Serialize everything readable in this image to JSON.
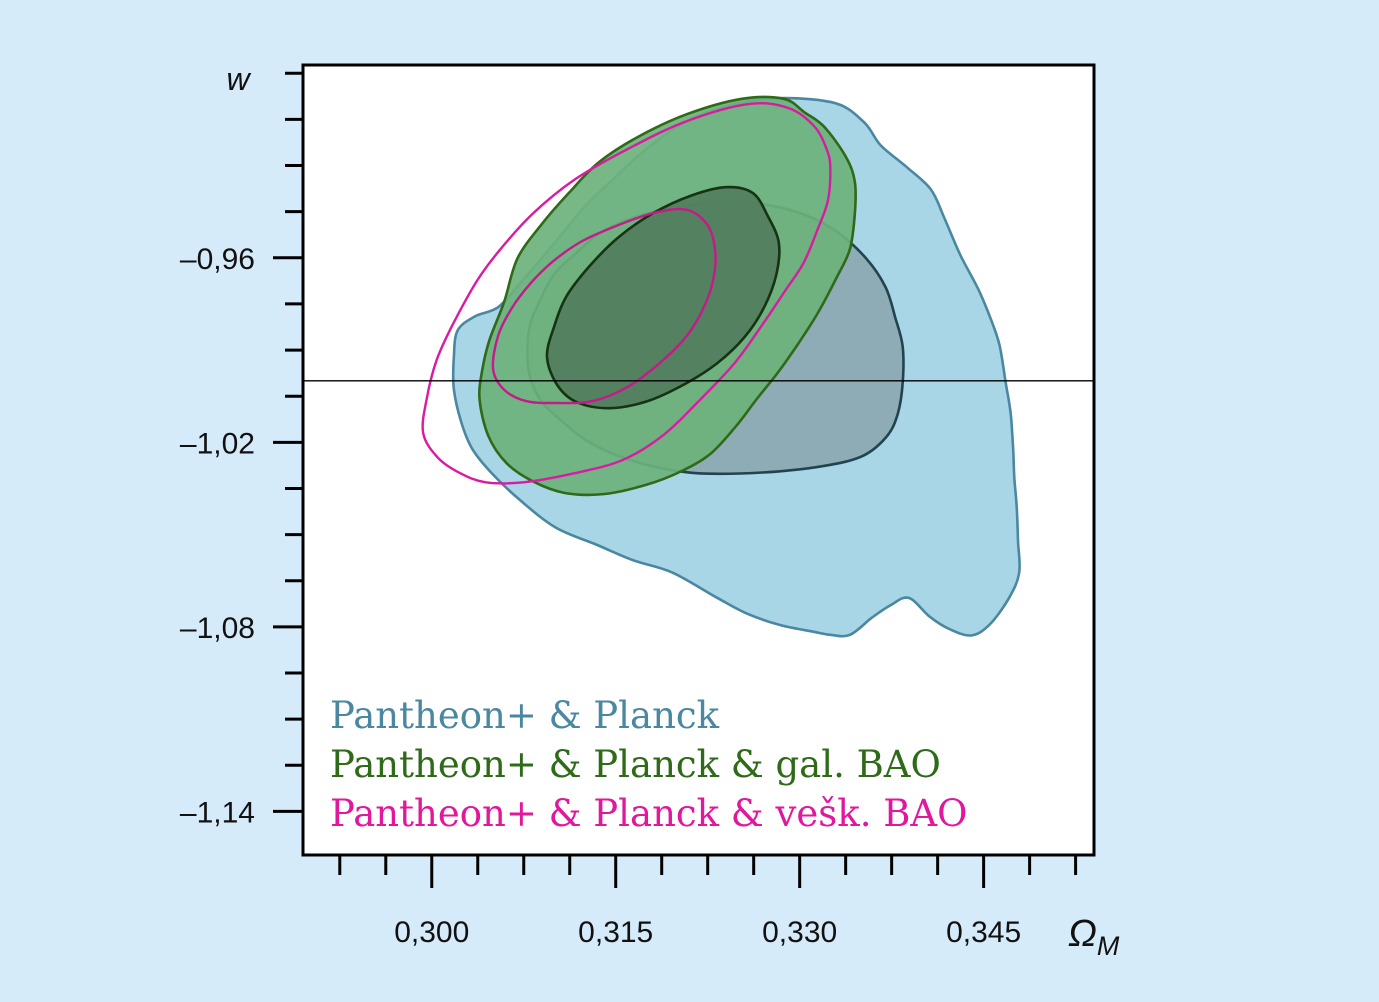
{
  "chart_data": {
    "type": "contour",
    "xlabel": "ΩM",
    "xlabel_main": "Ω",
    "xlabel_sub": "M",
    "ylabel": "w",
    "xlim": [
      0.2895,
      0.354
    ],
    "ylim": [
      -1.1542,
      -0.8973
    ],
    "x_ticks": [
      {
        "value": 0.3,
        "label": "0,300"
      },
      {
        "value": 0.315,
        "label": "0,315"
      },
      {
        "value": 0.33,
        "label": "0,330"
      },
      {
        "value": 0.345,
        "label": "0,345"
      }
    ],
    "y_ticks": [
      {
        "value": -0.96,
        "label": "–0,96"
      },
      {
        "value": -1.02,
        "label": "–1,02"
      },
      {
        "value": -1.08,
        "label": "–1,08"
      },
      {
        "value": -1.14,
        "label": "–1,14"
      }
    ],
    "x_minor_step": 0.00375,
    "y_minor_step": 0.015,
    "reference_line": {
      "w": -1.0
    },
    "grid": false,
    "legend_position": "bottom-left",
    "series": [
      {
        "name": "Pantheon+ & Planck",
        "color": "#4a87a0",
        "fill_outer": "#a2d3e5",
        "fill_inner": "#86a2a9",
        "line_outer": "#4a87a0",
        "line_inner": "#21444e",
        "style": "filled",
        "contours": [
          {
            "level": "2sigma",
            "points": [
              [
                0.3018,
                -0.9926
              ],
              [
                0.3021,
                -0.9837
              ],
              [
                0.3035,
                -0.9791
              ],
              [
                0.3054,
                -0.9761
              ],
              [
                0.3071,
                -0.9688
              ],
              [
                0.3099,
                -0.9557
              ],
              [
                0.3124,
                -0.9437
              ],
              [
                0.3148,
                -0.9344
              ],
              [
                0.3178,
                -0.9237
              ],
              [
                0.3216,
                -0.914
              ],
              [
                0.327,
                -0.9084
              ],
              [
                0.3326,
                -0.9094
              ],
              [
                0.3352,
                -0.9157
              ],
              [
                0.3366,
                -0.9234
              ],
              [
                0.3387,
                -0.9304
              ],
              [
                0.3407,
                -0.9378
              ],
              [
                0.3418,
                -0.9471
              ],
              [
                0.3431,
                -0.9591
              ],
              [
                0.3446,
                -0.9705
              ],
              [
                0.3456,
                -0.9801
              ],
              [
                0.3463,
                -0.9885
              ],
              [
                0.3468,
                -1.0006
              ],
              [
                0.3472,
                -1.0104
              ],
              [
                0.3474,
                -1.0217
              ],
              [
                0.3475,
                -1.0314
              ],
              [
                0.3477,
                -1.041
              ],
              [
                0.3478,
                -1.052
              ],
              [
                0.3479,
                -1.0623
              ],
              [
                0.3471,
                -1.0704
              ],
              [
                0.3455,
                -1.0792
              ],
              [
                0.344,
                -1.0828
              ],
              [
                0.3422,
                -1.0807
              ],
              [
                0.3406,
                -1.0767
              ],
              [
                0.3389,
                -1.0706
              ],
              [
                0.3374,
                -1.073
              ],
              [
                0.3359,
                -1.077
              ],
              [
                0.3341,
                -1.0826
              ],
              [
                0.3325,
                -1.0826
              ],
              [
                0.3311,
                -1.0816
              ],
              [
                0.3284,
                -1.0794
              ],
              [
                0.3257,
                -1.0757
              ],
              [
                0.3232,
                -1.0704
              ],
              [
                0.3196,
                -1.0623
              ],
              [
                0.3164,
                -1.0583
              ],
              [
                0.3135,
                -1.0534
              ],
              [
                0.3101,
                -1.0477
              ],
              [
                0.3072,
                -1.0388
              ],
              [
                0.3049,
                -1.0301
              ],
              [
                0.3033,
                -1.0221
              ],
              [
                0.3024,
                -1.0134
              ],
              [
                0.3018,
                -1.0026
              ]
            ]
          },
          {
            "level": "1sigma",
            "points": [
              [
                0.3078,
                -0.9922
              ],
              [
                0.308,
                -0.9821
              ],
              [
                0.3088,
                -0.9741
              ],
              [
                0.31,
                -0.9652
              ],
              [
                0.3118,
                -0.9584
              ],
              [
                0.3138,
                -0.9517
              ],
              [
                0.3164,
                -0.947
              ],
              [
                0.3197,
                -0.9437
              ],
              [
                0.3234,
                -0.942
              ],
              [
                0.3272,
                -0.9427
              ],
              [
                0.3304,
                -0.946
              ],
              [
                0.333,
                -0.9514
              ],
              [
                0.3354,
                -0.9601
              ],
              [
                0.337,
                -0.9695
              ],
              [
                0.3378,
                -0.9795
              ],
              [
                0.3384,
                -0.9889
              ],
              [
                0.3384,
                -1.0006
              ],
              [
                0.338,
                -1.0107
              ],
              [
                0.3371,
                -1.0181
              ],
              [
                0.3351,
                -1.0245
              ],
              [
                0.3318,
                -1.0278
              ],
              [
                0.327,
                -1.0298
              ],
              [
                0.3219,
                -1.0301
              ],
              [
                0.3183,
                -1.0281
              ],
              [
                0.315,
                -1.0241
              ],
              [
                0.3125,
                -1.0191
              ],
              [
                0.3104,
                -1.0124
              ],
              [
                0.309,
                -1.007
              ],
              [
                0.3081,
                -0.9999
              ]
            ]
          }
        ]
      },
      {
        "name": "Pantheon+ & Planck & gal. BAO",
        "color": "#2e6a18",
        "fill_outer": "#6cb27c",
        "fill_inner": "#4e775a",
        "line_outer": "#2e6a18",
        "line_inner": "#163312",
        "style": "filled",
        "contours": [
          {
            "level": "2sigma",
            "points": [
              [
                0.3047,
                -0.9868
              ],
              [
                0.3059,
                -0.9744
              ],
              [
                0.307,
                -0.9601
              ],
              [
                0.3091,
                -0.9484
              ],
              [
                0.3113,
                -0.9384
              ],
              [
                0.3136,
                -0.929
              ],
              [
                0.3168,
                -0.9207
              ],
              [
                0.3208,
                -0.9133
              ],
              [
                0.3253,
                -0.9083
              ],
              [
                0.3287,
                -0.9083
              ],
              [
                0.3304,
                -0.9127
              ],
              [
                0.332,
                -0.9174
              ],
              [
                0.3338,
                -0.9274
              ],
              [
                0.3345,
                -0.9354
              ],
              [
                0.3345,
                -0.9454
              ],
              [
                0.3341,
                -0.9571
              ],
              [
                0.333,
                -0.9665
              ],
              [
                0.3315,
                -0.9778
              ],
              [
                0.33,
                -0.9872
              ],
              [
                0.3283,
                -0.9969
              ],
              [
                0.3265,
                -1.0059
              ],
              [
                0.3248,
                -1.0148
              ],
              [
                0.3227,
                -1.0238
              ],
              [
                0.3203,
                -1.0295
              ],
              [
                0.3175,
                -1.0338
              ],
              [
                0.3141,
                -1.0368
              ],
              [
                0.3109,
                -1.0365
              ],
              [
                0.3083,
                -1.0328
              ],
              [
                0.3061,
                -1.0268
              ],
              [
                0.3046,
                -1.0178
              ],
              [
                0.3039,
                -1.0061
              ],
              [
                0.3041,
                -0.9969
              ]
            ]
          },
          {
            "level": "1sigma",
            "points": [
              [
                0.3094,
                -0.9921
              ],
              [
                0.31,
                -0.9821
              ],
              [
                0.311,
                -0.9724
              ],
              [
                0.3128,
                -0.963
              ],
              [
                0.3152,
                -0.9534
              ],
              [
                0.318,
                -0.9456
              ],
              [
                0.3212,
                -0.9397
              ],
              [
                0.3241,
                -0.937
              ],
              [
                0.3262,
                -0.939
              ],
              [
                0.3274,
                -0.9464
              ],
              [
                0.3283,
                -0.9551
              ],
              [
                0.3281,
                -0.9654
              ],
              [
                0.3271,
                -0.9761
              ],
              [
                0.3255,
                -0.9858
              ],
              [
                0.3233,
                -0.9942
              ],
              [
                0.3207,
                -1.0009
              ],
              [
                0.3176,
                -1.0066
              ],
              [
                0.3145,
                -1.0089
              ],
              [
                0.3118,
                -1.0069
              ],
              [
                0.3102,
                -1.0012
              ]
            ]
          }
        ]
      },
      {
        "name": "Pantheon+ & Planck & vešk. BAO",
        "color": "#e0189e",
        "fill_outer": "none",
        "fill_inner": "none",
        "line_outer": "#d91ba3",
        "line_inner": "#c41a8a",
        "style": "outline",
        "contours": [
          {
            "level": "2sigma",
            "points": [
              [
                0.2993,
                -1.017
              ],
              [
                0.2996,
                -1.0056
              ],
              [
                0.3004,
                -0.9932
              ],
              [
                0.3017,
                -0.9818
              ],
              [
                0.3037,
                -0.9674
              ],
              [
                0.3057,
                -0.9567
              ],
              [
                0.3083,
                -0.9454
              ],
              [
                0.3116,
                -0.9347
              ],
              [
                0.3158,
                -0.925
              ],
              [
                0.3207,
                -0.9157
              ],
              [
                0.3258,
                -0.91
              ],
              [
                0.3291,
                -0.9113
              ],
              [
                0.3312,
                -0.9173
              ],
              [
                0.3322,
                -0.9247
              ],
              [
                0.3325,
                -0.9307
              ],
              [
                0.3323,
                -0.9414
              ],
              [
                0.3314,
                -0.9514
              ],
              [
                0.3303,
                -0.9618
              ],
              [
                0.3288,
                -0.9708
              ],
              [
                0.327,
                -0.9815
              ],
              [
                0.3247,
                -0.9942
              ],
              [
                0.3217,
                -1.0069
              ],
              [
                0.3189,
                -1.0176
              ],
              [
                0.3156,
                -1.0257
              ],
              [
                0.3117,
                -1.03
              ],
              [
                0.3075,
                -1.033
              ],
              [
                0.3044,
                -1.033
              ],
              [
                0.3023,
                -1.03
              ],
              [
                0.3005,
                -1.025
              ]
            ]
          },
          {
            "level": "1sigma",
            "points": [
              [
                0.305,
                -0.9962
              ],
              [
                0.3054,
                -0.9855
              ],
              [
                0.3065,
                -0.9765
              ],
              [
                0.3081,
                -0.9681
              ],
              [
                0.3099,
                -0.9611
              ],
              [
                0.3122,
                -0.9547
              ],
              [
                0.315,
                -0.9497
              ],
              [
                0.3181,
                -0.9454
              ],
              [
                0.3208,
                -0.9444
              ],
              [
                0.3225,
                -0.9494
              ],
              [
                0.3231,
                -0.9574
              ],
              [
                0.323,
                -0.9661
              ],
              [
                0.3223,
                -0.9751
              ],
              [
                0.3209,
                -0.9848
              ],
              [
                0.3188,
                -0.9935
              ],
              [
                0.316,
                -1.0019
              ],
              [
                0.3131,
                -1.0066
              ],
              [
                0.3101,
                -1.0072
              ],
              [
                0.3077,
                -1.0066
              ],
              [
                0.3059,
                -1.0029
              ]
            ]
          }
        ]
      }
    ]
  }
}
